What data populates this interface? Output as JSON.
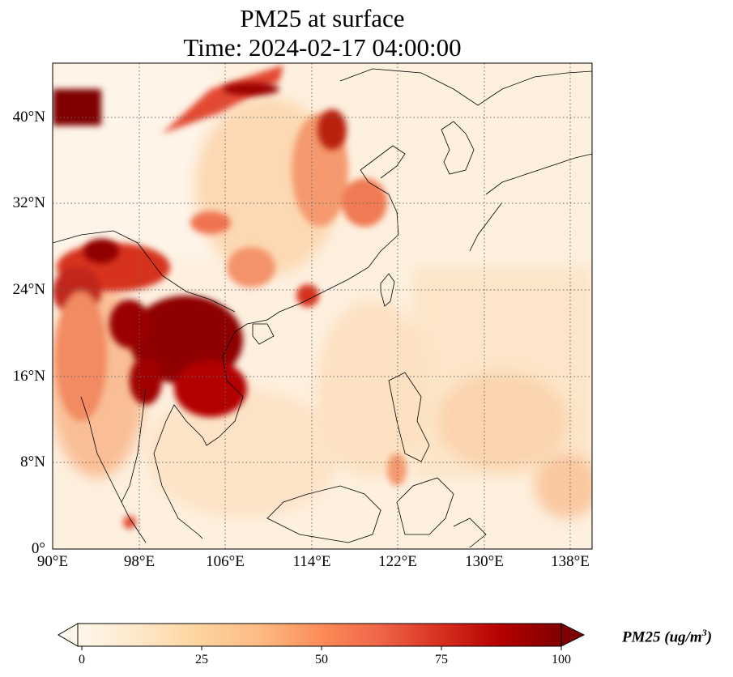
{
  "title": {
    "line1": "PM25 at surface",
    "line2": "Time: 2024-02-17 04:00:00"
  },
  "map": {
    "lon_range": [
      90,
      140
    ],
    "lat_range": [
      0,
      45
    ],
    "lat_ticks": [
      "40°N",
      "32°N",
      "24°N",
      "16°N",
      "8°N",
      "0°"
    ],
    "lon_ticks": [
      "90°E",
      "98°E",
      "106°E",
      "114°E",
      "122°E",
      "130°E",
      "138°E"
    ],
    "gridlines": "dotted"
  },
  "colorbar": {
    "colormap": "OrRd",
    "ticks": [
      "0",
      "25",
      "50",
      "75",
      "100"
    ],
    "label": "PM25 (ug/m",
    "label_exp": "3",
    "label_close": ")",
    "extend": "both",
    "colors": [
      "#fff7ec",
      "#fee8c8",
      "#fdd49e",
      "#fdbb84",
      "#fc8d59",
      "#ef6548",
      "#d7301f",
      "#b30000",
      "#7f0000"
    ]
  }
}
